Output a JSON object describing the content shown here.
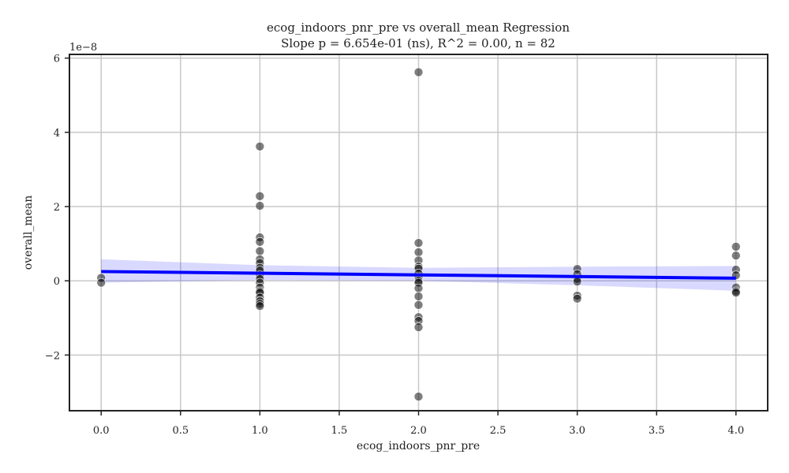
{
  "chart_data": {
    "type": "scatter",
    "title_line1": "ecog_indoors_pnr_pre vs overall_mean Regression",
    "title_line2": "Slope p = 6.654e-01 (ns), R^2 = 0.00, n = 82",
    "xlabel": "ecog_indoors_pnr_pre",
    "ylabel": "overall_mean",
    "y_offset_label": "1e−8",
    "xlim": [
      -0.2,
      4.2
    ],
    "ylim": [
      -3.5,
      6.1
    ],
    "y_multiplier": 1e-08,
    "x_ticks": [
      0.0,
      0.5,
      1.0,
      1.5,
      2.0,
      2.5,
      3.0,
      3.5,
      4.0
    ],
    "x_tick_labels": [
      "0.0",
      "0.5",
      "1.0",
      "1.5",
      "2.0",
      "2.5",
      "3.0",
      "3.5",
      "4.0"
    ],
    "y_ticks": [
      -2,
      0,
      2,
      4,
      6
    ],
    "y_tick_labels": [
      "−2",
      "0",
      "2",
      "4",
      "6"
    ],
    "grid": true,
    "regression": {
      "color": "#0000ff",
      "band_color": "#0000ff",
      "line": [
        [
          0.0,
          0.25
        ],
        [
          4.0,
          0.07
        ]
      ],
      "band_upper": [
        [
          0.0,
          0.58
        ],
        [
          1.0,
          0.42
        ],
        [
          2.0,
          0.35
        ],
        [
          3.0,
          0.38
        ],
        [
          4.0,
          0.4
        ]
      ],
      "band_lower": [
        [
          0.0,
          -0.05
        ],
        [
          1.0,
          0.02
        ],
        [
          2.0,
          0.0
        ],
        [
          3.0,
          -0.12
        ],
        [
          4.0,
          -0.27
        ]
      ]
    },
    "points": [
      {
        "x": 0.0,
        "y": 0.08
      },
      {
        "x": 0.0,
        "y": -0.05
      },
      {
        "x": 1.0,
        "y": 3.62
      },
      {
        "x": 1.0,
        "y": 2.28
      },
      {
        "x": 1.0,
        "y": 2.02
      },
      {
        "x": 1.0,
        "y": 1.17
      },
      {
        "x": 1.0,
        "y": 1.05
      },
      {
        "x": 1.0,
        "y": 0.8
      },
      {
        "x": 1.0,
        "y": 0.58
      },
      {
        "x": 1.0,
        "y": 0.48
      },
      {
        "x": 1.0,
        "y": 0.35
      },
      {
        "x": 1.0,
        "y": 0.28
      },
      {
        "x": 1.0,
        "y": 0.15
      },
      {
        "x": 1.0,
        "y": 0.05
      },
      {
        "x": 1.0,
        "y": -0.05
      },
      {
        "x": 1.0,
        "y": -0.18
      },
      {
        "x": 1.0,
        "y": -0.28
      },
      {
        "x": 1.0,
        "y": -0.32
      },
      {
        "x": 1.0,
        "y": -0.45
      },
      {
        "x": 1.0,
        "y": -0.55
      },
      {
        "x": 1.0,
        "y": -0.62
      },
      {
        "x": 1.0,
        "y": -0.68
      },
      {
        "x": 2.0,
        "y": 5.62
      },
      {
        "x": 2.0,
        "y": 1.02
      },
      {
        "x": 2.0,
        "y": 0.77
      },
      {
        "x": 2.0,
        "y": 0.55
      },
      {
        "x": 2.0,
        "y": 0.38
      },
      {
        "x": 2.0,
        "y": 0.33
      },
      {
        "x": 2.0,
        "y": 0.2
      },
      {
        "x": 2.0,
        "y": 0.1
      },
      {
        "x": 2.0,
        "y": 0.0
      },
      {
        "x": 2.0,
        "y": -0.05
      },
      {
        "x": 2.0,
        "y": -0.2
      },
      {
        "x": 2.0,
        "y": -0.42
      },
      {
        "x": 2.0,
        "y": -0.65
      },
      {
        "x": 2.0,
        "y": -0.98
      },
      {
        "x": 2.0,
        "y": -1.08
      },
      {
        "x": 2.0,
        "y": -1.25
      },
      {
        "x": 2.0,
        "y": -3.12
      },
      {
        "x": 3.0,
        "y": 0.32
      },
      {
        "x": 3.0,
        "y": 0.18
      },
      {
        "x": 3.0,
        "y": 0.05
      },
      {
        "x": 3.0,
        "y": -0.02
      },
      {
        "x": 3.0,
        "y": -0.4
      },
      {
        "x": 3.0,
        "y": -0.48
      },
      {
        "x": 4.0,
        "y": 0.92
      },
      {
        "x": 4.0,
        "y": 0.68
      },
      {
        "x": 4.0,
        "y": 0.3
      },
      {
        "x": 4.0,
        "y": 0.15
      },
      {
        "x": 4.0,
        "y": -0.18
      },
      {
        "x": 4.0,
        "y": -0.28
      },
      {
        "x": 4.0,
        "y": -0.32
      }
    ]
  }
}
